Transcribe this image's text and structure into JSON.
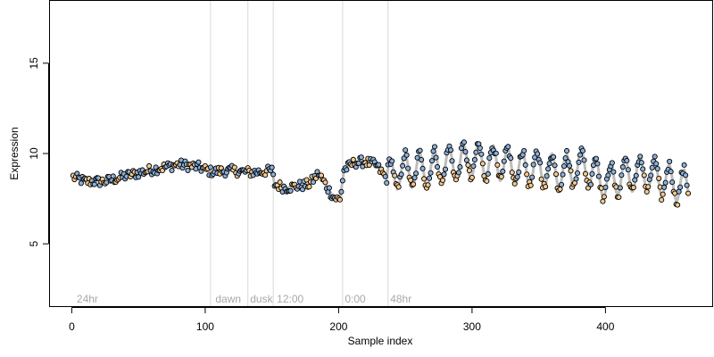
{
  "chart_data": {
    "type": "scatter",
    "title": "",
    "xlabel": "Sample index",
    "ylabel": "Expression",
    "xlim": [
      -17,
      480
    ],
    "ylim": [
      1.5,
      18.5
    ],
    "xticks": [
      0,
      100,
      200,
      300,
      400
    ],
    "yticks": [
      5,
      10,
      15
    ],
    "grid": false,
    "colors": {
      "point_dark": "#8db0d8",
      "point_light": "#f4c98e",
      "stroke": "#000000",
      "trend": "#bdbdbd",
      "vline": "#d8d8d8",
      "annotation": "#a8a8a8"
    },
    "vlines": [
      104,
      132,
      151,
      203,
      237
    ],
    "annotations": [
      {
        "x": 3,
        "text": "24hr"
      },
      {
        "x": 107,
        "text": "dawn"
      },
      {
        "x": 133,
        "text": "dusk"
      },
      {
        "x": 153,
        "text": "12:00"
      },
      {
        "x": 204,
        "text": "0:00"
      },
      {
        "x": 238,
        "text": "48hr"
      }
    ],
    "x_range": [
      1,
      462
    ],
    "profile": [
      [
        1,
        8.7
      ],
      [
        10,
        8.45
      ],
      [
        25,
        8.45
      ],
      [
        40,
        8.75
      ],
      [
        60,
        9.1
      ],
      [
        80,
        9.4
      ],
      [
        95,
        9.25
      ],
      [
        104,
        9.0
      ],
      [
        120,
        9.05
      ],
      [
        135,
        8.95
      ],
      [
        150,
        9.05
      ],
      [
        152,
        8.3
      ],
      [
        160,
        8.1
      ],
      [
        170,
        8.2
      ],
      [
        178,
        8.3
      ],
      [
        185,
        8.9
      ],
      [
        190,
        8.3
      ],
      [
        196,
        7.6
      ],
      [
        201,
        7.4
      ],
      [
        204,
        9.1
      ],
      [
        212,
        9.5
      ],
      [
        220,
        9.55
      ],
      [
        228,
        9.35
      ],
      [
        236,
        8.6
      ],
      [
        245,
        9.0
      ],
      [
        265,
        9.1
      ],
      [
        290,
        9.5
      ],
      [
        310,
        9.6
      ],
      [
        340,
        9.15
      ],
      [
        370,
        9.0
      ],
      [
        385,
        9.3
      ],
      [
        400,
        8.4
      ],
      [
        415,
        8.8
      ],
      [
        430,
        8.9
      ],
      [
        445,
        8.5
      ],
      [
        462,
        8.1
      ]
    ],
    "osc_start": 236,
    "osc_period": 11,
    "osc_amplitude": 0.95
  }
}
